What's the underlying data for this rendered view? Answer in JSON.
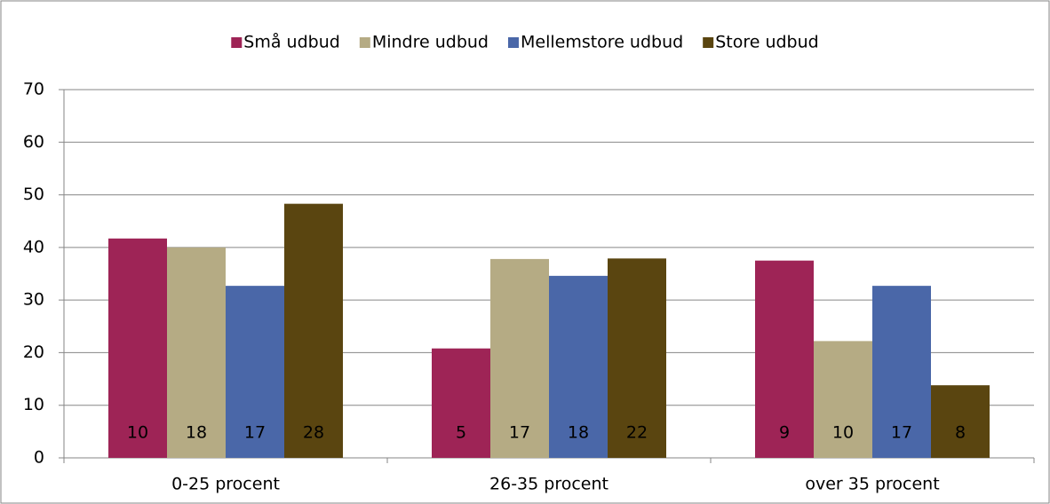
{
  "chart_data": {
    "type": "bar",
    "categories": [
      "0-25 procent",
      "26-35 procent",
      "over 35 procent"
    ],
    "series": [
      {
        "name": "Små udbud",
        "color": "#9e2456",
        "values": [
          41.7,
          20.8,
          37.5
        ],
        "counts": [
          10,
          5,
          9
        ]
      },
      {
        "name": "Mindre udbud",
        "color": "#b5ab84",
        "values": [
          40.0,
          37.8,
          22.2
        ],
        "counts": [
          18,
          17,
          10
        ]
      },
      {
        "name": "Mellemstore udbud",
        "color": "#4a67a8",
        "values": [
          32.7,
          34.6,
          32.7
        ],
        "counts": [
          17,
          18,
          17
        ]
      },
      {
        "name": "Store udbud",
        "color": "#5a4510",
        "values": [
          48.3,
          37.9,
          13.8
        ],
        "counts": [
          28,
          22,
          8
        ]
      }
    ],
    "ylim": [
      0,
      70
    ],
    "yticks": [
      0,
      10,
      20,
      30,
      40,
      50,
      60,
      70
    ],
    "grid": true,
    "legend": "top"
  }
}
